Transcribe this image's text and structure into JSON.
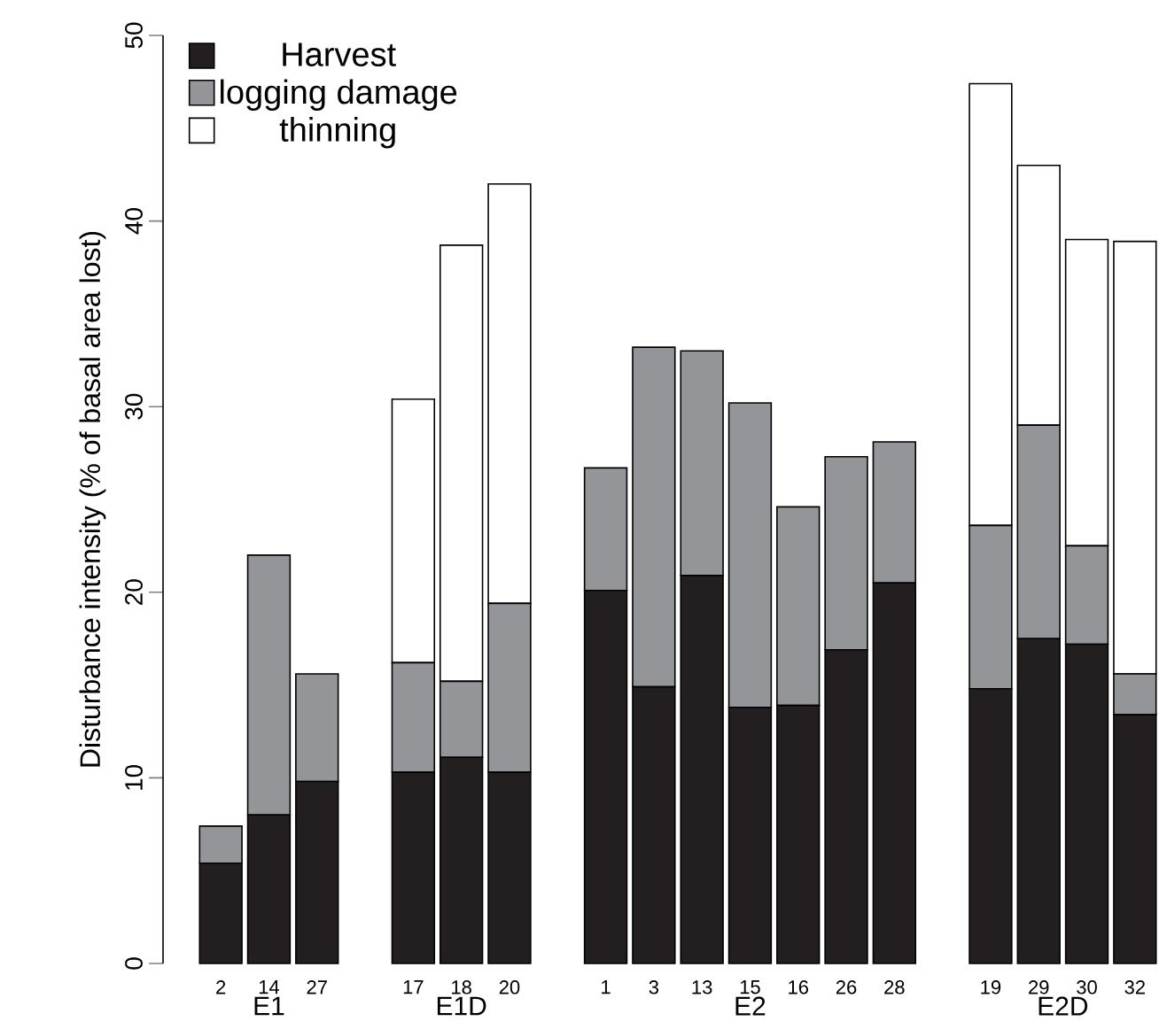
{
  "chart_data": {
    "type": "bar",
    "stacked": true,
    "ylabel": "Disturbance intensity (% of basal area lost)",
    "categories": [
      "2",
      "14",
      "27",
      null,
      "17",
      "18",
      "20",
      null,
      "1",
      "3",
      "13",
      "15",
      "16",
      "26",
      "28",
      null,
      "19",
      "29",
      "30",
      "32"
    ],
    "series": [
      {
        "name": "Harvest",
        "color": "#231f20",
        "values": [
          5.4,
          8.0,
          9.8,
          0,
          10.3,
          11.1,
          10.3,
          0,
          20.1,
          14.9,
          20.9,
          13.8,
          13.9,
          16.9,
          20.5,
          0,
          14.8,
          17.5,
          17.2,
          13.4
        ]
      },
      {
        "name": "logging damage",
        "color": "#939598",
        "values": [
          2.0,
          14.0,
          5.8,
          0,
          5.9,
          4.1,
          9.1,
          0,
          6.6,
          18.3,
          12.1,
          16.4,
          10.7,
          10.4,
          7.6,
          0,
          8.8,
          11.5,
          5.3,
          2.2
        ]
      },
      {
        "name": "thinning",
        "color": "#ffffff",
        "values": [
          0,
          0,
          0,
          0,
          14.2,
          23.5,
          22.6,
          0,
          0,
          0,
          0,
          0,
          0,
          0,
          0,
          0,
          23.8,
          14.0,
          16.5,
          23.3
        ]
      }
    ],
    "annotations": [
      "E1",
      "E1D",
      "E2",
      "E2D"
    ],
    "ylim": [
      0,
      50
    ],
    "yticks": [
      0,
      10,
      20,
      30,
      40,
      50
    ],
    "grid": false,
    "legend": "top left"
  }
}
